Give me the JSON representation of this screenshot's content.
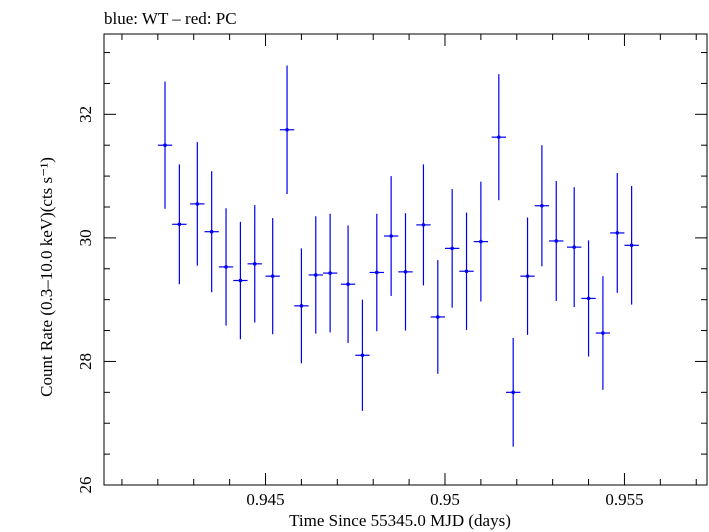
{
  "chart_data": {
    "type": "scatter",
    "title": "blue: WT – red: PC",
    "xlabel": "Time Since 55345.0 MJD (days)",
    "ylabel": "Count Rate (0.3–10.0 keV)(cts s⁻¹)",
    "xlim": [
      0.9405,
      0.9573
    ],
    "ylim": [
      26,
      33.3
    ],
    "x_ticks": [
      0.945,
      0.95,
      0.955
    ],
    "x_tick_labels": [
      "0.945",
      "0.95",
      "0.955"
    ],
    "y_ticks": [
      26,
      28,
      30,
      32
    ],
    "y_tick_labels": [
      "26",
      "28",
      "30",
      "32"
    ],
    "grid": false,
    "series": [
      {
        "color": "#0000ee",
        "marker": "error-cross",
        "x_halfwidth": 0.0002,
        "x": [
          0.9422,
          0.9426,
          0.9431,
          0.9435,
          0.9439,
          0.9443,
          0.9447,
          0.9452,
          0.9456,
          0.946,
          0.9464,
          0.9468,
          0.9473,
          0.9477,
          0.9481,
          0.9485,
          0.9489,
          0.9494,
          0.9498,
          0.9502,
          0.9506,
          0.951,
          0.9515,
          0.9519,
          0.9523,
          0.9527,
          0.9531,
          0.9536,
          0.954,
          0.9544,
          0.9548,
          0.9552
        ],
        "y": [
          31.5,
          30.22,
          30.55,
          30.1,
          29.53,
          29.31,
          29.58,
          29.38,
          31.75,
          28.9,
          29.4,
          29.43,
          29.25,
          28.1,
          29.44,
          30.03,
          29.45,
          30.21,
          28.72,
          29.83,
          29.46,
          29.94,
          31.63,
          27.5,
          29.38,
          30.52,
          29.95,
          29.85,
          29.02,
          28.46,
          30.08,
          29.88
        ],
        "y_err": [
          1.03,
          0.97,
          1.0,
          0.98,
          0.95,
          0.95,
          0.95,
          0.94,
          1.04,
          0.93,
          0.95,
          0.96,
          0.95,
          0.9,
          0.95,
          0.97,
          0.95,
          0.98,
          0.92,
          0.96,
          0.95,
          0.97,
          1.02,
          0.88,
          0.95,
          0.98,
          0.97,
          0.97,
          0.94,
          0.92,
          0.97,
          0.96
        ]
      }
    ]
  }
}
